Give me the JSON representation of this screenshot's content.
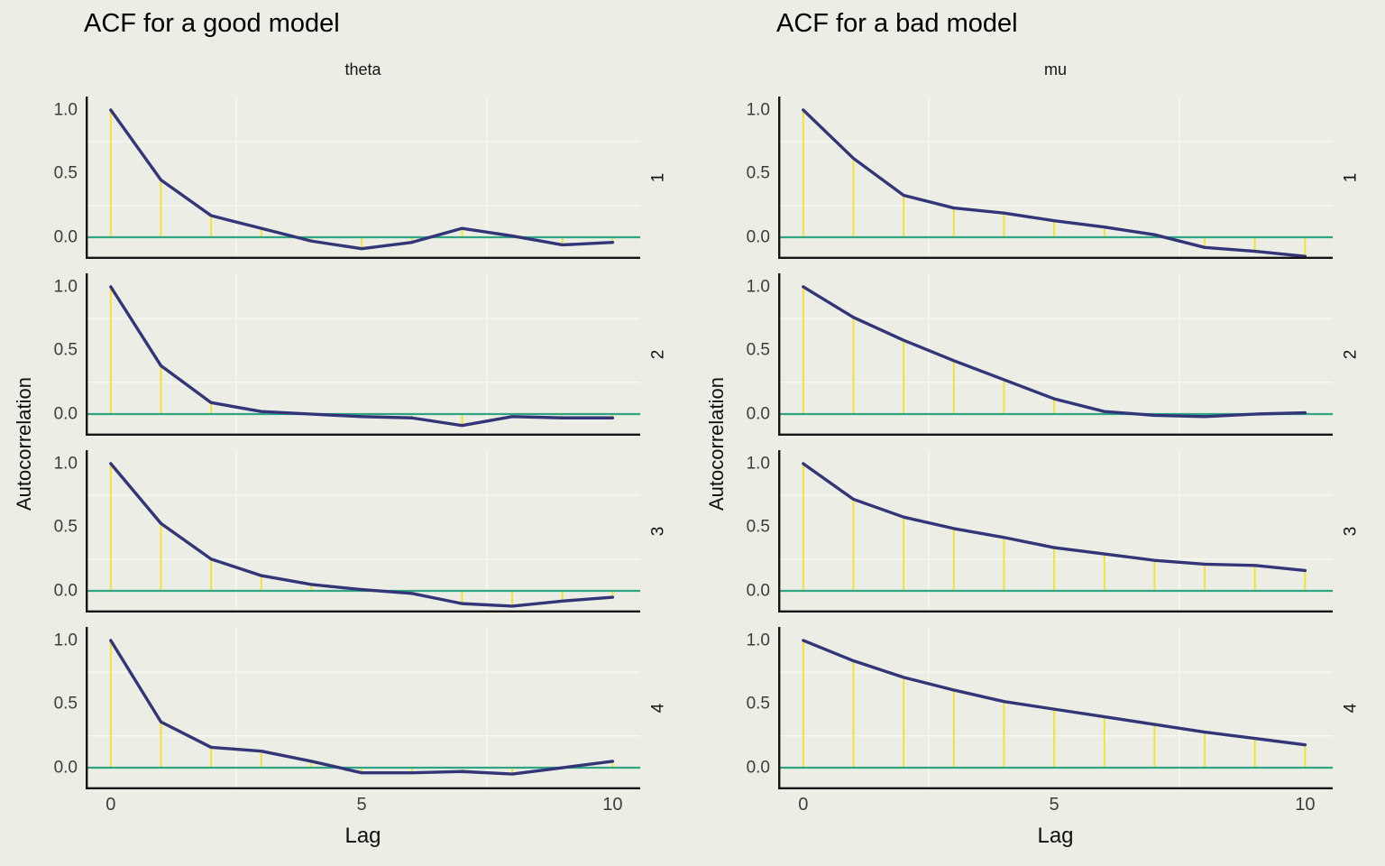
{
  "colors": {
    "background": "#ECEDE4",
    "acf_line": "#323577",
    "lag_stem": "#F5E125",
    "zero_line": "#2FA583",
    "grid_minor": "#F7F7F1",
    "axis_line": "#141414",
    "tick_text": "#3D3D3D",
    "label_text": "#111111"
  },
  "chart_data": [
    {
      "type": "line",
      "title": "ACF for a good model",
      "facet_label": "theta",
      "xlabel": "Lag",
      "ylabel": "Autocorrelation",
      "legend": "none",
      "grid": "minor-only",
      "x_tick_labels": [
        "0",
        "5",
        "10"
      ],
      "x_tick_values": [
        0,
        5,
        10
      ],
      "y_tick_labels": [
        "1.0",
        "0.5",
        "0.0"
      ],
      "y_tick_values": [
        1.0,
        0.5,
        0.0
      ],
      "xlim": [
        -0.5,
        10.55
      ],
      "ylim": [
        -0.17,
        1.106
      ],
      "minor_grid_x": [
        2.5,
        7.5
      ],
      "minor_grid_y": [
        0.25,
        0.75
      ],
      "lags": [
        0,
        1,
        2,
        3,
        4,
        5,
        6,
        7,
        8,
        9,
        10
      ],
      "series": [
        {
          "name": "1",
          "values": [
            1.0,
            0.45,
            0.17,
            0.07,
            -0.03,
            -0.09,
            -0.04,
            0.07,
            0.01,
            -0.06,
            -0.04
          ]
        },
        {
          "name": "2",
          "values": [
            1.0,
            0.38,
            0.09,
            0.02,
            0.0,
            -0.02,
            -0.03,
            -0.09,
            -0.02,
            -0.03,
            -0.03
          ]
        },
        {
          "name": "3",
          "values": [
            1.0,
            0.53,
            0.25,
            0.12,
            0.05,
            0.01,
            -0.02,
            -0.1,
            -0.12,
            -0.08,
            -0.05
          ]
        },
        {
          "name": "4",
          "values": [
            1.0,
            0.36,
            0.16,
            0.13,
            0.05,
            -0.04,
            -0.04,
            -0.03,
            -0.05,
            0.0,
            0.05
          ]
        }
      ]
    },
    {
      "type": "line",
      "title": "ACF for a bad model",
      "facet_label": "mu",
      "xlabel": "Lag",
      "ylabel": "Autocorrelation",
      "legend": "none",
      "grid": "minor-only",
      "x_tick_labels": [
        "0",
        "5",
        "10"
      ],
      "x_tick_values": [
        0,
        5,
        10
      ],
      "y_tick_labels": [
        "1.0",
        "0.5",
        "0.0"
      ],
      "y_tick_values": [
        1.0,
        0.5,
        0.0
      ],
      "xlim": [
        -0.5,
        10.55
      ],
      "ylim": [
        -0.17,
        1.106
      ],
      "minor_grid_x": [
        2.5,
        7.5
      ],
      "minor_grid_y": [
        0.25,
        0.75
      ],
      "lags": [
        0,
        1,
        2,
        3,
        4,
        5,
        6,
        7,
        8,
        9,
        10
      ],
      "series": [
        {
          "name": "1",
          "values": [
            1.0,
            0.62,
            0.33,
            0.23,
            0.19,
            0.13,
            0.08,
            0.02,
            -0.08,
            -0.11,
            -0.15
          ]
        },
        {
          "name": "2",
          "values": [
            1.0,
            0.76,
            0.58,
            0.42,
            0.27,
            0.12,
            0.02,
            -0.01,
            -0.02,
            0.0,
            0.01
          ]
        },
        {
          "name": "3",
          "values": [
            1.0,
            0.72,
            0.58,
            0.49,
            0.42,
            0.34,
            0.29,
            0.24,
            0.21,
            0.2,
            0.16
          ]
        },
        {
          "name": "4",
          "values": [
            1.0,
            0.84,
            0.71,
            0.61,
            0.52,
            0.46,
            0.4,
            0.34,
            0.28,
            0.23,
            0.18
          ]
        }
      ]
    }
  ]
}
